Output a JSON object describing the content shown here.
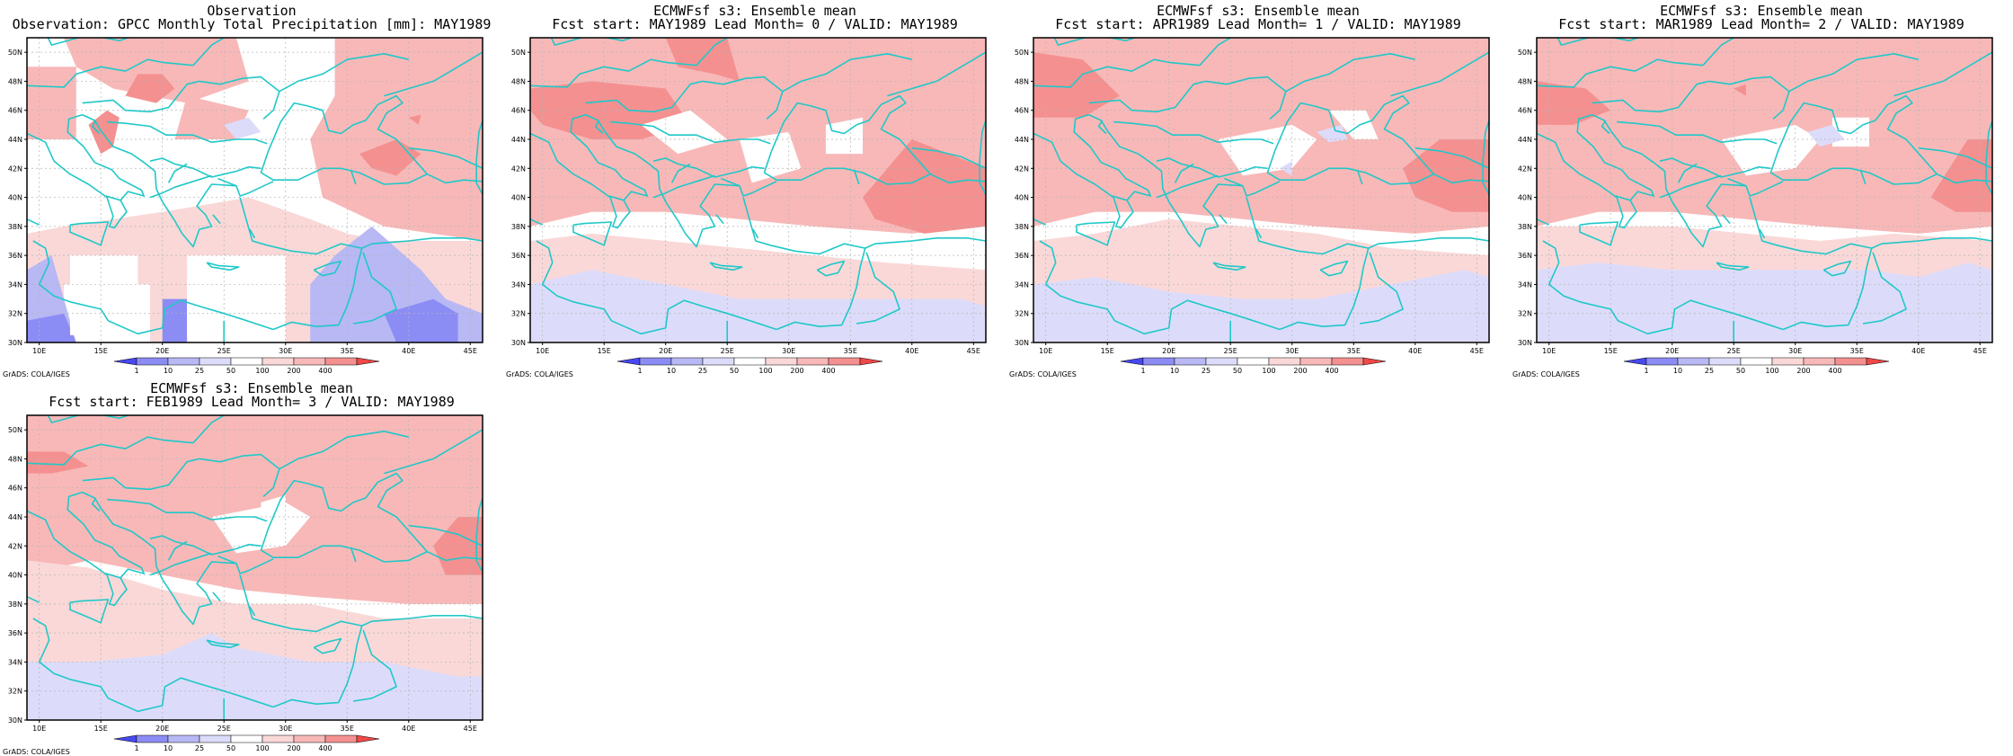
{
  "figure": {
    "credit": "GrADS: COLA/IGES",
    "lat_ticks": [
      "30N",
      "32N",
      "34N",
      "36N",
      "38N",
      "40N",
      "42N",
      "44N",
      "46N",
      "48N",
      "50N"
    ],
    "lon_ticks": [
      "10E",
      "15E",
      "20E",
      "25E",
      "30E",
      "35E",
      "40E",
      "45E"
    ],
    "lat_range": [
      30,
      51
    ],
    "lon_range": [
      9,
      46
    ]
  },
  "colorbar": {
    "labels": [
      "1",
      "10",
      "25",
      "50",
      "100",
      "200",
      "400"
    ],
    "colors": [
      "#4848f0",
      "#8c8cf5",
      "#b8b8f5",
      "#dcdcfa",
      "#ffffff",
      "#fad8d8",
      "#f8b8b8",
      "#f59090",
      "#f04848"
    ]
  },
  "colors": {
    "coast": "#20c8c8",
    "frame": "#000000",
    "grid": "#b4b4b4"
  },
  "panels": [
    {
      "title1": "Observation",
      "title2": "Observation: GPCC Monthly Total Precipitation [mm]: MAY1989"
    },
    {
      "title1": "ECMWFsf s3: Ensemble mean",
      "title2": "Fcst start: MAY1989  Lead Month= 0 / VALID: MAY1989"
    },
    {
      "title1": "ECMWFsf s3: Ensemble mean",
      "title2": "Fcst start: APR1989  Lead Month= 1 / VALID: MAY1989"
    },
    {
      "title1": "ECMWFsf s3: Ensemble mean",
      "title2": "Fcst start: MAR1989  Lead Month= 2 / VALID: MAY1989"
    },
    {
      "title1": "ECMWFsf s3: Ensemble mean",
      "title2": "Fcst start: FEB1989  Lead Month= 3 / VALID: MAY1989"
    }
  ]
}
